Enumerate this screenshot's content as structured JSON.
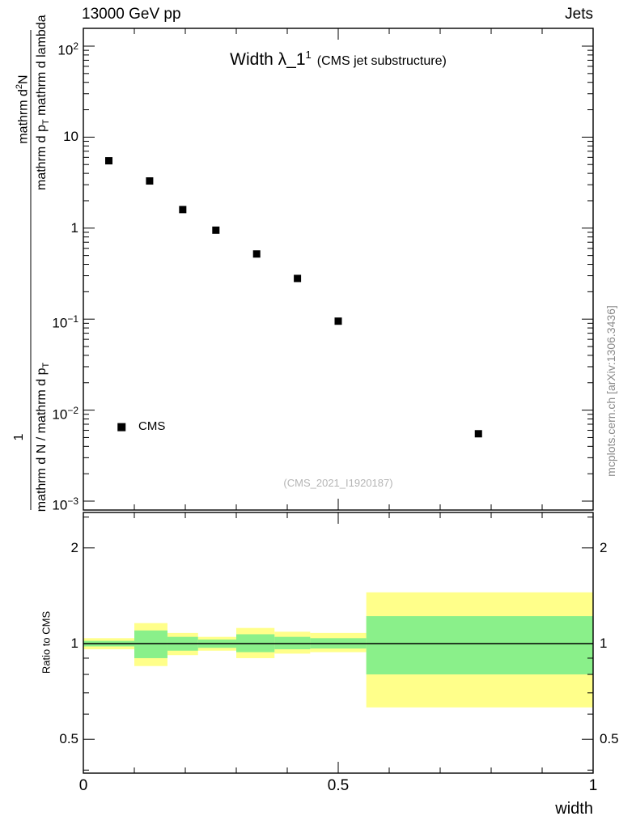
{
  "header": {
    "left": "13000 GeV pp",
    "right": "Jets"
  },
  "title": {
    "main": "Width λ_1",
    "sup": "1",
    "paren": "(CMS jet substructure)"
  },
  "legend": {
    "label": "CMS"
  },
  "watermark": "(CMS_2021_I1920187)",
  "side_note": "mcplots.cern.ch [arXiv:1306.3436]",
  "colors": {
    "band_outer": "#ffff8a",
    "band_inner": "#8af08a",
    "marker": "#000000",
    "frame": "#000000",
    "watermark": "#b5b5b5",
    "side_note": "#8a8a8a"
  },
  "axes": {
    "x": {
      "label": "width",
      "range": [
        0,
        1
      ],
      "major_ticks": [
        {
          "v": 0,
          "label": "0"
        },
        {
          "v": 0.5,
          "label": "0.5"
        },
        {
          "v": 1,
          "label": "1"
        }
      ],
      "minor_step": 0.1
    },
    "y_main": {
      "scale": "log",
      "range": [
        0.0008,
        160
      ],
      "tick_labels": [
        {
          "v": 100,
          "base": "10",
          "exp": "2"
        },
        {
          "v": 10,
          "base": "10",
          "exp": ""
        },
        {
          "v": 1,
          "base": "1",
          "exp": ""
        },
        {
          "v": 0.1,
          "base": "10",
          "exp": "−1"
        },
        {
          "v": 0.01,
          "base": "10",
          "exp": "−2"
        },
        {
          "v": 0.001,
          "base": "10",
          "exp": "−3"
        }
      ],
      "label": {
        "num_top": [
          {
            "t": "mathrm d"
          },
          {
            "t": "2"
          },
          {
            "t": "N"
          }
        ],
        "den_top": [
          {
            "t": "mathrm d p"
          },
          {
            "t": "T"
          },
          {
            "t": " mathrm d lambda"
          }
        ],
        "num_bottom": "1",
        "den_bottom": [
          {
            "t": "mathrm d N / mathrm d p"
          },
          {
            "t": "T"
          }
        ]
      }
    },
    "y_ratio": {
      "scale": "log",
      "label": "Ratio to CMS",
      "range": [
        0.39,
        2.6
      ],
      "tick_labels": [
        {
          "v": 2,
          "label": "2"
        },
        {
          "v": 1,
          "label": "1"
        },
        {
          "v": 0.5,
          "label": "0.5"
        }
      ],
      "minor_ticks": [
        2.5,
        0.9,
        0.8,
        0.7,
        0.6,
        0.4
      ]
    }
  },
  "chart_data": {
    "type": "scatter",
    "title": "Width λ_1^1 (CMS jet substructure)",
    "xlabel": "width",
    "xlim": [
      0,
      1
    ],
    "main_panel": {
      "yscale": "log",
      "ylim": [
        0.0008,
        160
      ],
      "series": [
        {
          "name": "CMS",
          "marker": "black-filled-square",
          "points": [
            {
              "x": 0.05,
              "y": 5.5
            },
            {
              "x": 0.13,
              "y": 3.3
            },
            {
              "x": 0.195,
              "y": 1.6
            },
            {
              "x": 0.26,
              "y": 0.95
            },
            {
              "x": 0.34,
              "y": 0.52
            },
            {
              "x": 0.42,
              "y": 0.28
            },
            {
              "x": 0.5,
              "y": 0.095
            },
            {
              "x": 0.775,
              "y": 0.0055
            }
          ]
        }
      ],
      "legend_marker": {
        "x": 0.075,
        "y": 0.0065
      }
    },
    "ratio_panel": {
      "yscale": "log",
      "ylim": [
        0.39,
        2.6
      ],
      "reference_line": 1,
      "bands": [
        {
          "x0": 0.0,
          "x1": 0.1,
          "outer_lo": 0.96,
          "outer_hi": 1.04,
          "inner_lo": 0.98,
          "inner_hi": 1.02
        },
        {
          "x0": 0.1,
          "x1": 0.165,
          "outer_lo": 0.85,
          "outer_hi": 1.16,
          "inner_lo": 0.9,
          "inner_hi": 1.1
        },
        {
          "x0": 0.165,
          "x1": 0.225,
          "outer_lo": 0.92,
          "outer_hi": 1.08,
          "inner_lo": 0.95,
          "inner_hi": 1.05
        },
        {
          "x0": 0.225,
          "x1": 0.3,
          "outer_lo": 0.95,
          "outer_hi": 1.05,
          "inner_lo": 0.97,
          "inner_hi": 1.03
        },
        {
          "x0": 0.3,
          "x1": 0.375,
          "outer_lo": 0.9,
          "outer_hi": 1.12,
          "inner_lo": 0.94,
          "inner_hi": 1.07
        },
        {
          "x0": 0.375,
          "x1": 0.445,
          "outer_lo": 0.93,
          "outer_hi": 1.09,
          "inner_lo": 0.96,
          "inner_hi": 1.05
        },
        {
          "x0": 0.445,
          "x1": 0.555,
          "outer_lo": 0.94,
          "outer_hi": 1.08,
          "inner_lo": 0.965,
          "inner_hi": 1.04
        },
        {
          "x0": 0.555,
          "x1": 1.0,
          "outer_lo": 0.63,
          "outer_hi": 1.45,
          "inner_lo": 0.8,
          "inner_hi": 1.22
        }
      ]
    }
  }
}
